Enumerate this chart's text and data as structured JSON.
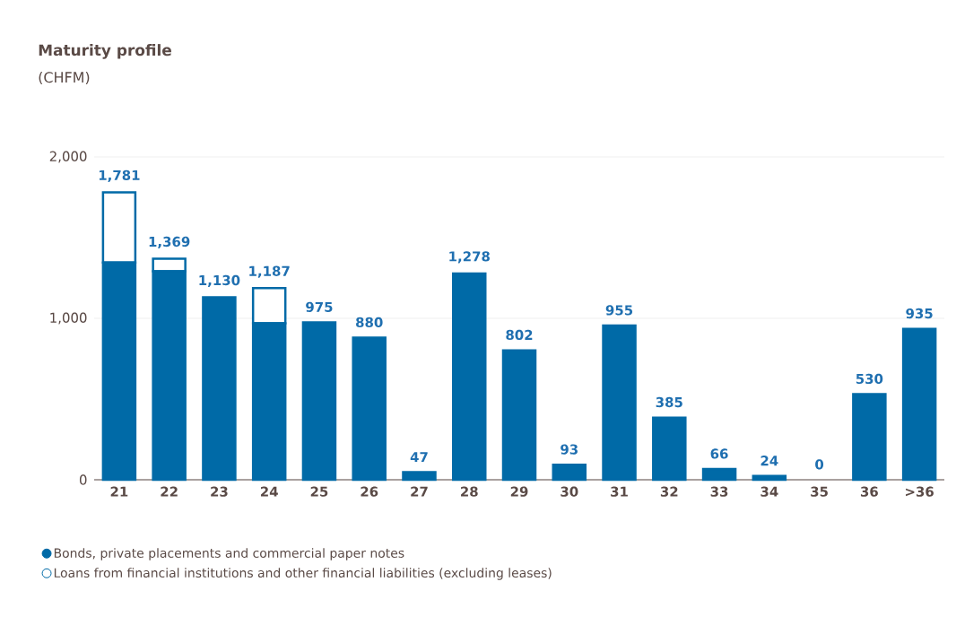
{
  "chart_data": {
    "type": "bar",
    "title": "Maturity profile",
    "subtitle": "(CHFM)",
    "categories": [
      "21",
      "22",
      "23",
      "24",
      "25",
      "26",
      "27",
      "28",
      "29",
      "30",
      "31",
      "32",
      "33",
      "34",
      "35",
      "36",
      ">36"
    ],
    "stacked": true,
    "series": [
      {
        "name": "Bonds, private placements and commercial paper notes",
        "color": "#006aa7",
        "values": [
          1346,
          1291,
          1130,
          970,
          975,
          880,
          47,
          1278,
          802,
          93,
          955,
          385,
          66,
          24,
          0,
          530,
          935
        ]
      },
      {
        "name": "Loans from financial institutions and other financial liabilities (excluding leases)",
        "color": "#ffffff",
        "values": [
          435,
          78,
          0,
          217,
          0,
          0,
          0,
          0,
          0,
          0,
          0,
          0,
          0,
          0,
          0,
          0,
          0
        ]
      }
    ],
    "totals": [
      "1,781",
      "1,369",
      "1,130",
      "1,187",
      "975",
      "880",
      "47",
      "1,278",
      "802",
      "93",
      "955",
      "385",
      "66",
      "24",
      "0",
      "530",
      "935"
    ],
    "ylim": [
      0,
      2000
    ],
    "yticks": [
      {
        "value": 0,
        "label": "0"
      },
      {
        "value": 1000,
        "label": "1,000"
      },
      {
        "value": 2000,
        "label": "2,000"
      }
    ],
    "grid": "y",
    "legend": "bottom left"
  }
}
